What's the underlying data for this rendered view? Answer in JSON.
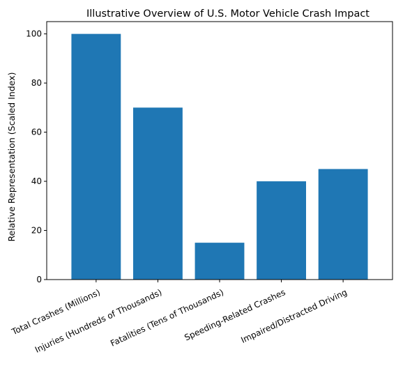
{
  "chart_data": {
    "type": "bar",
    "title": "Illustrative Overview of U.S. Motor Vehicle Crash Impact",
    "xlabel": "",
    "ylabel": "Relative Representation (Scaled Index)",
    "categories": [
      "Total Crashes (Millions)",
      "Injuries (Hundreds of Thousands)",
      "Fatalities (Tens of Thousands)",
      "Speeding-Related Crashes",
      "Impaired/Distracted Driving"
    ],
    "values": [
      100,
      70,
      15,
      40,
      45
    ],
    "ylim": [
      0,
      105
    ],
    "yticks": [
      0,
      20,
      40,
      60,
      80,
      100
    ],
    "bar_color": "#1f77b4",
    "grid": false,
    "legend": "none"
  }
}
